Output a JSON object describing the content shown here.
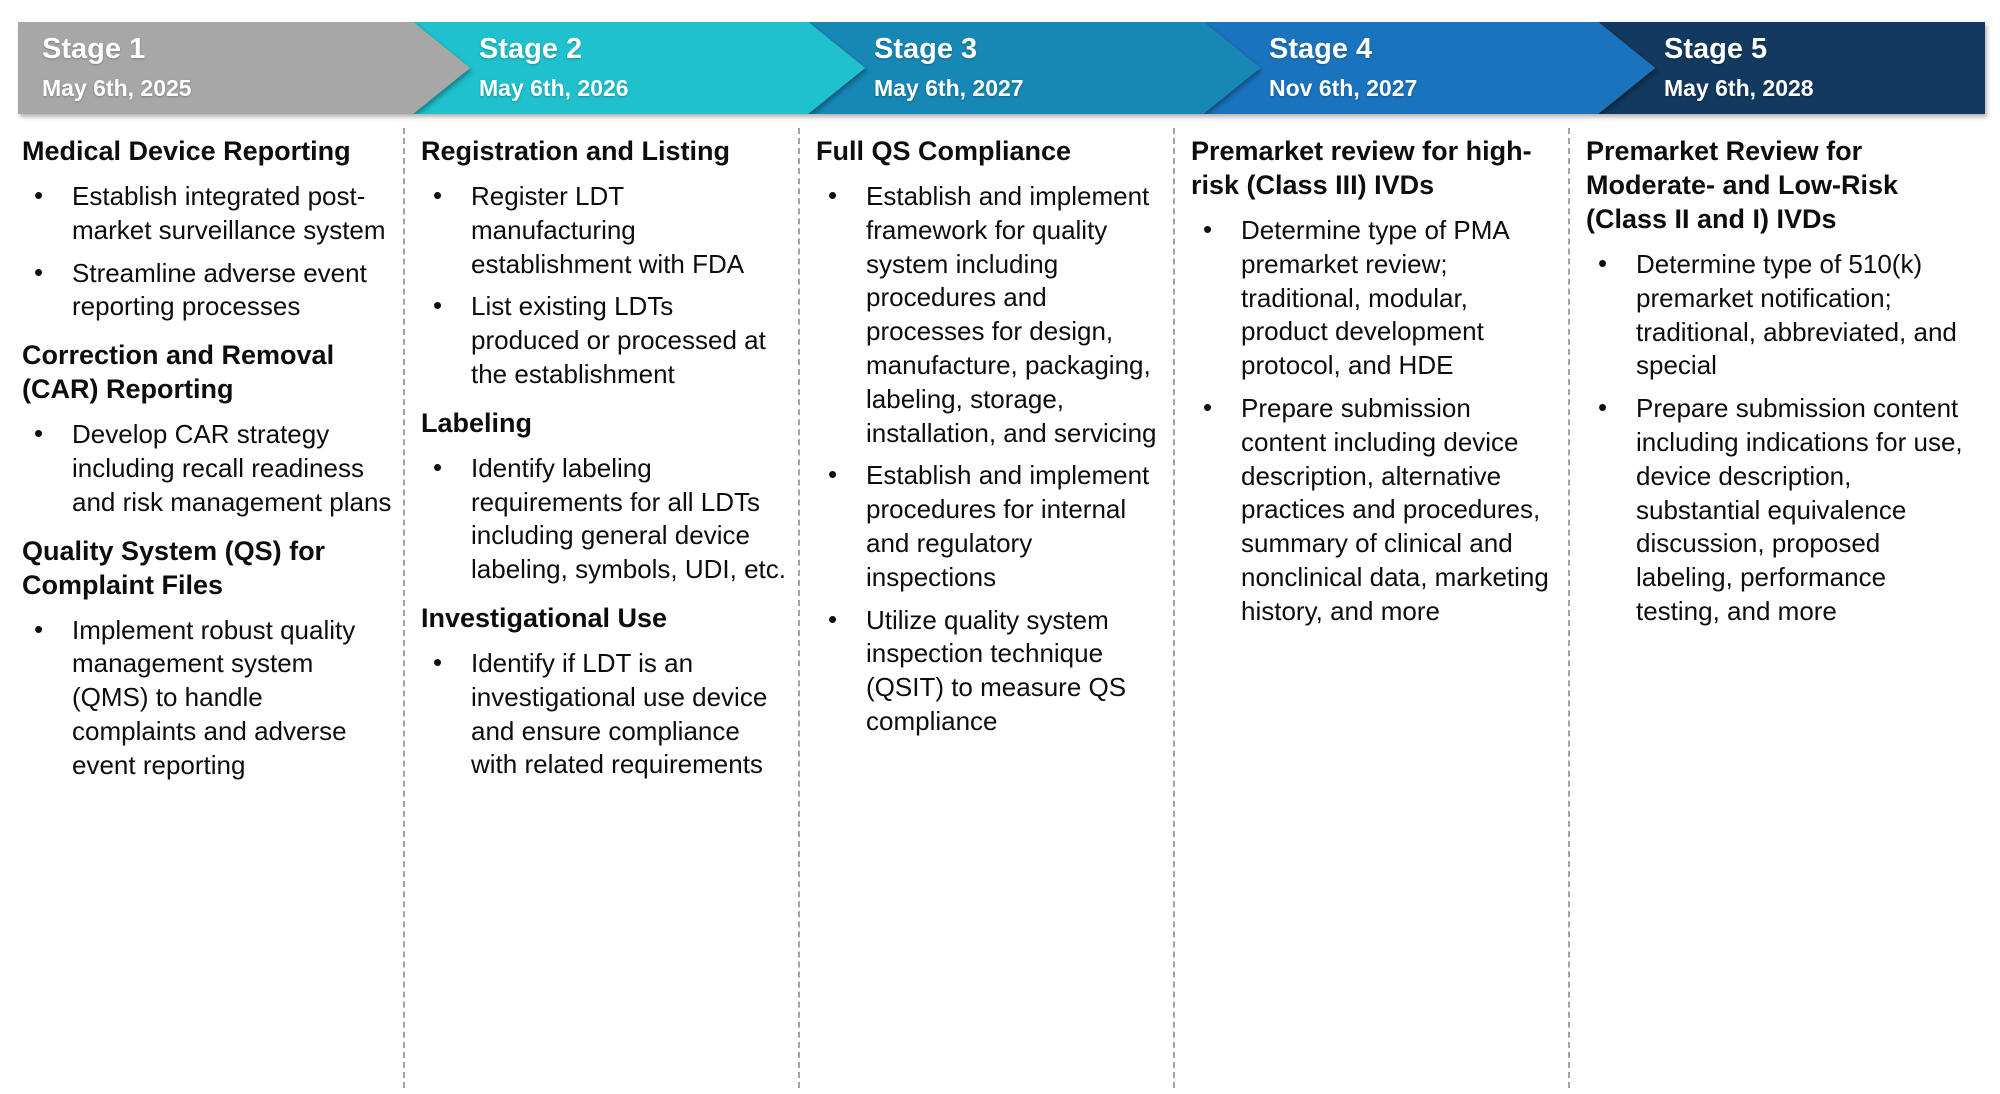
{
  "stages": [
    {
      "label": "Stage 1",
      "date": "May 6th, 2025",
      "color": "#a7a7a7",
      "sections": [
        {
          "heading": "Medical Device Reporting",
          "bullets": [
            "Establish integrated post-market surveillance system",
            "Streamline adverse event reporting processes"
          ]
        },
        {
          "heading": "Correction and Removal (CAR) Reporting",
          "bullets": [
            "Develop CAR strategy including recall readiness and risk management plans"
          ]
        },
        {
          "heading": "Quality System (QS) for Complaint Files",
          "bullets": [
            "Implement robust quality management system (QMS) to handle complaints and adverse event reporting"
          ]
        }
      ]
    },
    {
      "label": "Stage 2",
      "date": "May 6th, 2026",
      "color": "#1ec1cd",
      "sections": [
        {
          "heading": "Registration and Listing",
          "bullets": [
            "Register LDT manufacturing establishment with FDA",
            "List existing LDTs produced or processed at the establishment"
          ]
        },
        {
          "heading": "Labeling",
          "bullets": [
            "Identify labeling requirements for all LDTs including general device labeling, symbols, UDI, etc."
          ]
        },
        {
          "heading": "Investigational Use",
          "bullets": [
            "Identify if LDT is an investigational use device and ensure compliance with related requirements"
          ]
        }
      ]
    },
    {
      "label": "Stage 3",
      "date": "May 6th, 2027",
      "color": "#1787b6",
      "sections": [
        {
          "heading": "Full QS Compliance",
          "bullets": [
            "Establish and implement framework for quality system including procedures and processes for design, manufacture, packaging, labeling, storage, installation, and servicing",
            "Establish and implement procedures for internal and regulatory inspections",
            "Utilize quality system inspection technique (QSIT) to measure QS compliance"
          ]
        }
      ]
    },
    {
      "label": "Stage 4",
      "date": "Nov 6th, 2027",
      "color": "#1a73bd",
      "sections": [
        {
          "heading": "Premarket review for high-risk (Class III) IVDs",
          "bullets": [
            "Determine type of PMA premarket review; traditional, modular, product development protocol, and HDE",
            "Prepare submission content including device description, alternative practices and procedures, summary of clinical and nonclinical data, marketing history, and more"
          ]
        }
      ]
    },
    {
      "label": "Stage 5",
      "date": "May 6th, 2028",
      "color": "#12395f",
      "sections": [
        {
          "heading": "Premarket Review for Moderate- and Low-Risk (Class II and I) IVDs",
          "bullets": [
            "Determine type of 510(k) premarket notification; traditional, abbreviated, and special",
            "Prepare submission content including indications for use, device description, substantial equivalence discussion, proposed labeling, performance testing, and more"
          ]
        }
      ]
    }
  ]
}
